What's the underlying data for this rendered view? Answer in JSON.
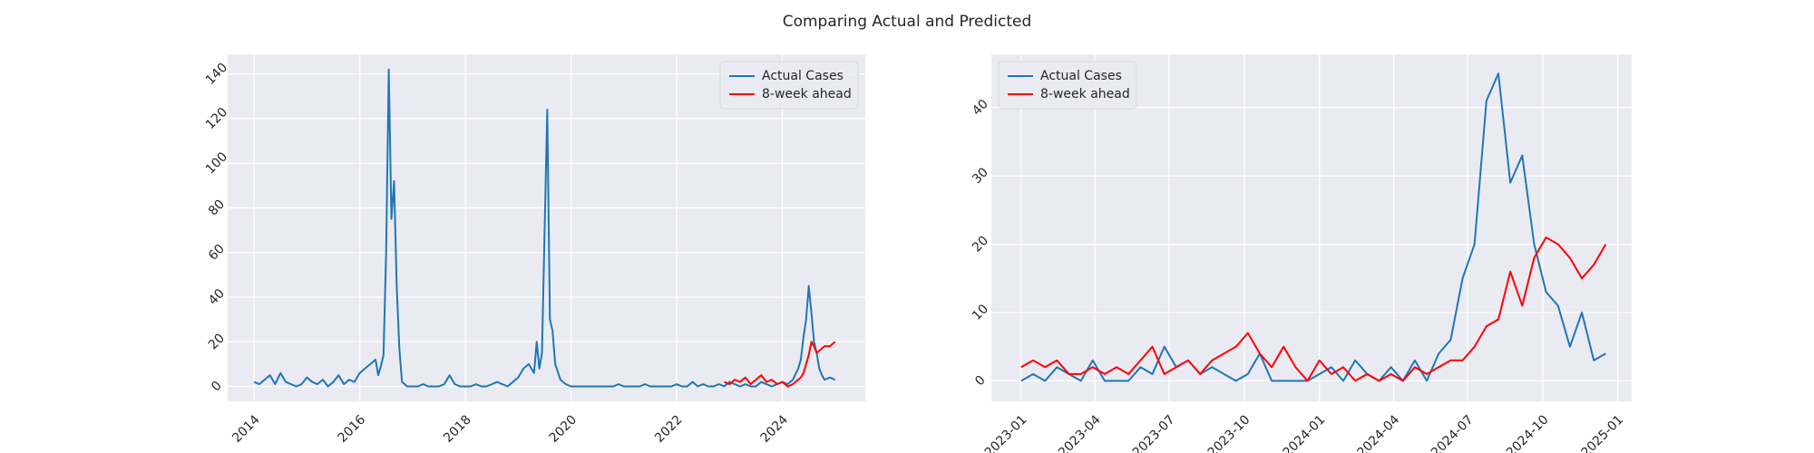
{
  "title": "Comparing Actual and Predicted",
  "chart_data": [
    {
      "type": "line",
      "x": [
        2014.0,
        2014.1,
        2014.2,
        2014.3,
        2014.4,
        2014.5,
        2014.6,
        2014.7,
        2014.8,
        2014.9,
        2015.0,
        2015.1,
        2015.2,
        2015.3,
        2015.4,
        2015.5,
        2015.6,
        2015.7,
        2015.8,
        2015.9,
        2016.0,
        2016.1,
        2016.2,
        2016.3,
        2016.35,
        2016.4,
        2016.45,
        2016.5,
        2016.55,
        2016.6,
        2016.65,
        2016.7,
        2016.75,
        2016.8,
        2016.9,
        2017.0,
        2017.1,
        2017.2,
        2017.3,
        2017.4,
        2017.5,
        2017.6,
        2017.7,
        2017.8,
        2017.9,
        2018.0,
        2018.1,
        2018.2,
        2018.3,
        2018.4,
        2018.5,
        2018.6,
        2018.7,
        2018.8,
        2018.9,
        2019.0,
        2019.1,
        2019.2,
        2019.3,
        2019.35,
        2019.4,
        2019.45,
        2019.5,
        2019.55,
        2019.6,
        2019.65,
        2019.7,
        2019.8,
        2019.9,
        2020.0,
        2020.1,
        2020.2,
        2020.3,
        2020.4,
        2020.5,
        2020.6,
        2020.7,
        2020.8,
        2020.9,
        2021.0,
        2021.1,
        2021.2,
        2021.3,
        2021.4,
        2021.5,
        2021.6,
        2021.7,
        2021.8,
        2021.9,
        2022.0,
        2022.1,
        2022.2,
        2022.3,
        2022.4,
        2022.5,
        2022.6,
        2022.7,
        2022.8,
        2022.9,
        2023.0,
        2023.1,
        2023.2,
        2023.3,
        2023.4,
        2023.5,
        2023.6,
        2023.7,
        2023.8,
        2023.9,
        2024.0,
        2024.1,
        2024.2,
        2024.3,
        2024.35,
        2024.4,
        2024.45,
        2024.5,
        2024.55,
        2024.6,
        2024.65,
        2024.7,
        2024.75,
        2024.8,
        2024.9,
        2025.0
      ],
      "series": [
        {
          "name": "Actual Cases",
          "color": "#1f77b4",
          "values": [
            2,
            1,
            3,
            5,
            1,
            6,
            2,
            1,
            0,
            1,
            4,
            2,
            1,
            3,
            0,
            2,
            5,
            1,
            3,
            2,
            6,
            8,
            10,
            12,
            5,
            9,
            14,
            60,
            142,
            75,
            92,
            45,
            17,
            2,
            0,
            0,
            0,
            1,
            0,
            0,
            0,
            1,
            5,
            1,
            0,
            0,
            0,
            1,
            0,
            0,
            1,
            2,
            1,
            0,
            2,
            4,
            8,
            10,
            6,
            20,
            8,
            15,
            70,
            124,
            30,
            25,
            10,
            3,
            1,
            0,
            0,
            0,
            0,
            0,
            0,
            0,
            0,
            0,
            1,
            0,
            0,
            0,
            0,
            1,
            0,
            0,
            0,
            0,
            0,
            1,
            0,
            0,
            2,
            0,
            1,
            0,
            0,
            1,
            0,
            2,
            1,
            0,
            1,
            0,
            0,
            2,
            1,
            0,
            1,
            2,
            1,
            3,
            8,
            12,
            22,
            30,
            45,
            33,
            20,
            15,
            8,
            5,
            3,
            4,
            3
          ]
        },
        {
          "name": "8-week ahead",
          "color": "#ff0000",
          "values": [
            null,
            null,
            null,
            null,
            null,
            null,
            null,
            null,
            null,
            null,
            null,
            null,
            null,
            null,
            null,
            null,
            null,
            null,
            null,
            null,
            null,
            null,
            null,
            null,
            null,
            null,
            null,
            null,
            null,
            null,
            null,
            null,
            null,
            null,
            null,
            null,
            null,
            null,
            null,
            null,
            null,
            null,
            null,
            null,
            null,
            null,
            null,
            null,
            null,
            null,
            null,
            null,
            null,
            null,
            null,
            null,
            null,
            null,
            null,
            null,
            null,
            null,
            null,
            null,
            null,
            null,
            null,
            null,
            null,
            null,
            null,
            null,
            null,
            null,
            null,
            null,
            null,
            null,
            null,
            null,
            null,
            null,
            null,
            null,
            null,
            null,
            null,
            null,
            null,
            null,
            null,
            null,
            null,
            null,
            null,
            null,
            null,
            null,
            2,
            1,
            3,
            2,
            4,
            1,
            3,
            5,
            2,
            3,
            1,
            2,
            0,
            1,
            3,
            4,
            6,
            10,
            14,
            20,
            18,
            15,
            16,
            17,
            18,
            18,
            20
          ]
        }
      ],
      "xlim": [
        2013.5,
        2025.57
      ],
      "ylim": [
        -6.7,
        148.8
      ],
      "xticks": [
        2014,
        2016,
        2018,
        2020,
        2022,
        2024
      ],
      "yticks": [
        0,
        20,
        40,
        60,
        80,
        100,
        120,
        140
      ],
      "grid": true,
      "legend": "upper right"
    },
    {
      "type": "line",
      "x": [
        2023.0,
        2023.04,
        2023.08,
        2023.12,
        2023.16,
        2023.2,
        2023.24,
        2023.28,
        2023.32,
        2023.36,
        2023.4,
        2023.44,
        2023.48,
        2023.52,
        2023.56,
        2023.6,
        2023.64,
        2023.68,
        2023.72,
        2023.76,
        2023.8,
        2023.84,
        2023.88,
        2023.92,
        2023.96,
        2024.0,
        2024.04,
        2024.08,
        2024.12,
        2024.16,
        2024.2,
        2024.24,
        2024.28,
        2024.32,
        2024.36,
        2024.4,
        2024.44,
        2024.48,
        2024.52,
        2024.56,
        2024.6,
        2024.64,
        2024.68,
        2024.72,
        2024.76,
        2024.8,
        2024.84,
        2024.88,
        2024.92,
        2024.96
      ],
      "series": [
        {
          "name": "Actual Cases",
          "color": "#1f77b4",
          "values": [
            0,
            1,
            0,
            2,
            1,
            0,
            3,
            0,
            0,
            0,
            2,
            1,
            5,
            2,
            3,
            1,
            2,
            1,
            0,
            1,
            4,
            0,
            0,
            0,
            0,
            1,
            2,
            0,
            3,
            1,
            0,
            2,
            0,
            3,
            0,
            4,
            6,
            15,
            20,
            41,
            45,
            29,
            33,
            20,
            13,
            11,
            5,
            10,
            3,
            4
          ]
        },
        {
          "name": "8-week ahead",
          "color": "#ff0000",
          "values": [
            2,
            3,
            2,
            3,
            1,
            1,
            2,
            1,
            2,
            1,
            3,
            5,
            1,
            2,
            3,
            1,
            3,
            4,
            5,
            7,
            4,
            2,
            5,
            2,
            0,
            3,
            1,
            2,
            0,
            1,
            0,
            1,
            0,
            2,
            1,
            2,
            3,
            3,
            5,
            8,
            9,
            16,
            11,
            18,
            21,
            20,
            18,
            15,
            17,
            20
          ]
        }
      ],
      "xlim": [
        2022.9,
        2025.047
      ],
      "ylim": [
        -3,
        47.8
      ],
      "xticks": [
        {
          "value": 2023.0,
          "label": "2023-01"
        },
        {
          "value": 2023.247,
          "label": "2023-04"
        },
        {
          "value": 2023.496,
          "label": "2023-07"
        },
        {
          "value": 2023.748,
          "label": "2023-10"
        },
        {
          "value": 2024.0,
          "label": "2024-01"
        },
        {
          "value": 2024.249,
          "label": "2024-04"
        },
        {
          "value": 2024.497,
          "label": "2024-07"
        },
        {
          "value": 2024.749,
          "label": "2024-10"
        },
        {
          "value": 2025.0,
          "label": "2025-01"
        }
      ],
      "yticks": [
        0,
        10,
        20,
        30,
        40
      ],
      "grid": true,
      "legend": "upper left"
    }
  ]
}
